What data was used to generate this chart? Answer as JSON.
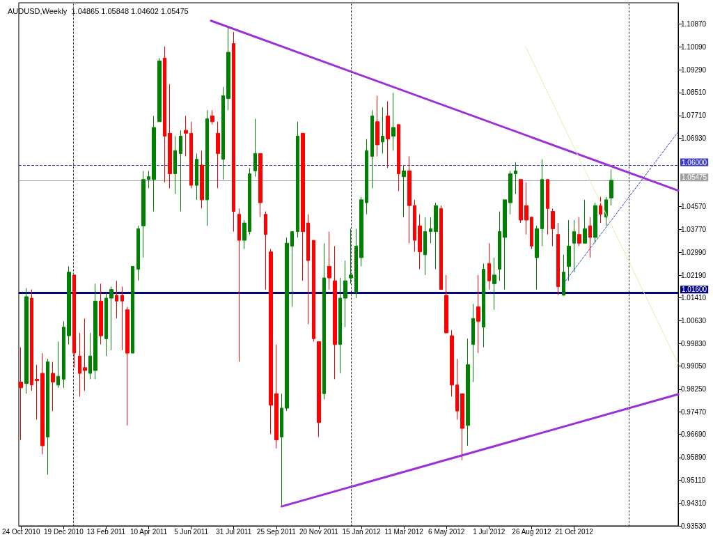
{
  "chart_data": {
    "type": "candlestick",
    "title": "AUDUSD,Weekly  1.04865 1.05848 1.04602 1.05475",
    "x": [
      "2010-10-24",
      "2010-10-31",
      "2010-11-07",
      "2010-11-14",
      "2010-11-21",
      "2010-11-28",
      "2010-12-05",
      "2010-12-12",
      "2010-12-19",
      "2010-12-26",
      "2011-01-02",
      "2011-01-09",
      "2011-01-16",
      "2011-01-23",
      "2011-01-30",
      "2011-02-06",
      "2011-02-13",
      "2011-02-20",
      "2011-02-27",
      "2011-03-06",
      "2011-03-13",
      "2011-03-20",
      "2011-03-27",
      "2011-04-03",
      "2011-04-10",
      "2011-04-17",
      "2011-04-24",
      "2011-05-01",
      "2011-05-08",
      "2011-05-15",
      "2011-05-22",
      "2011-05-29",
      "2011-06-05",
      "2011-06-12",
      "2011-06-19",
      "2011-06-26",
      "2011-07-03",
      "2011-07-10",
      "2011-07-17",
      "2011-07-24",
      "2011-07-31",
      "2011-08-07",
      "2011-08-14",
      "2011-08-21",
      "2011-08-28",
      "2011-09-04",
      "2011-09-11",
      "2011-09-18",
      "2011-09-25",
      "2011-10-02",
      "2011-10-09",
      "2011-10-16",
      "2011-10-23",
      "2011-10-30",
      "2011-11-06",
      "2011-11-13",
      "2011-11-20",
      "2011-11-27",
      "2011-12-04",
      "2011-12-11",
      "2011-12-18",
      "2011-12-25",
      "2012-01-01",
      "2012-01-08",
      "2012-01-15",
      "2012-01-22",
      "2012-01-29",
      "2012-02-05",
      "2012-02-12",
      "2012-02-19",
      "2012-02-26",
      "2012-03-04",
      "2012-03-11",
      "2012-03-18",
      "2012-03-25",
      "2012-04-01",
      "2012-04-08",
      "2012-04-15",
      "2012-04-22",
      "2012-04-29",
      "2012-05-06",
      "2012-05-13",
      "2012-05-20",
      "2012-05-27",
      "2012-06-03",
      "2012-06-10",
      "2012-06-17",
      "2012-06-24",
      "2012-07-01",
      "2012-07-08",
      "2012-07-15",
      "2012-07-22",
      "2012-07-29",
      "2012-08-05",
      "2012-08-12",
      "2012-08-19",
      "2012-08-26",
      "2012-09-02",
      "2012-09-09",
      "2012-09-16",
      "2012-09-23",
      "2012-09-30",
      "2012-10-07",
      "2012-10-14",
      "2012-10-21",
      "2012-10-28",
      "2012-11-04",
      "2012-11-11",
      "2012-11-18",
      "2012-11-25",
      "2012-12-02",
      "2012-12-09"
    ],
    "ohlc": [
      [
        0.985,
        0.997,
        0.965,
        0.983
      ],
      [
        0.9845,
        1.0175,
        0.981,
        1.0145
      ],
      [
        1.014,
        1.017,
        0.982,
        0.984
      ],
      [
        0.986,
        0.991,
        0.972,
        0.9855
      ],
      [
        0.988,
        0.995,
        0.96,
        0.963
      ],
      [
        0.966,
        0.993,
        0.953,
        0.992
      ],
      [
        0.988,
        0.992,
        0.975,
        0.985
      ],
      [
        0.984,
        0.999,
        0.983,
        0.987
      ],
      [
        0.986,
        1.006,
        0.983,
        1.004
      ],
      [
        1.001,
        1.025,
        0.998,
        1.023
      ],
      [
        1.022,
        1.022,
        0.99,
        0.995
      ],
      [
        0.994,
        1.002,
        0.98,
        0.988
      ],
      [
        0.99,
        1.007,
        0.982,
        0.989
      ],
      [
        0.988,
        1.002,
        0.986,
        0.994
      ],
      [
        0.989,
        1.019,
        0.986,
        1.013
      ],
      [
        1.013,
        1.019,
        0.998,
        1.001
      ],
      [
        1.0,
        1.016,
        0.994,
        1.014
      ],
      [
        1.014,
        1.018,
        0.996,
        1.017
      ],
      [
        1.015,
        1.02,
        1.007,
        1.013
      ],
      [
        1.015,
        1.018,
        0.996,
        1.013
      ],
      [
        1.01,
        1.011,
        0.97,
        0.995
      ],
      [
        0.995,
        1.025,
        0.995,
        1.025
      ],
      [
        1.024,
        1.039,
        1.02,
        1.038
      ],
      [
        1.039,
        1.058,
        1.028,
        1.055
      ],
      [
        1.055,
        1.058,
        1.052,
        1.056
      ],
      [
        1.055,
        1.077,
        1.044,
        1.073
      ],
      [
        1.075,
        1.097,
        1.075,
        1.096
      ],
      [
        1.097,
        1.101,
        1.054,
        1.07
      ],
      [
        1.071,
        1.088,
        1.052,
        1.057
      ],
      [
        1.057,
        1.07,
        1.05,
        1.065
      ],
      [
        1.064,
        1.072,
        1.044,
        1.07
      ],
      [
        1.072,
        1.077,
        1.063,
        1.071
      ],
      [
        1.071,
        1.075,
        1.052,
        1.053
      ],
      [
        1.053,
        1.064,
        1.048,
        1.062
      ],
      [
        1.06,
        1.065,
        1.045,
        1.048
      ],
      [
        1.048,
        1.079,
        1.039,
        1.076
      ],
      [
        1.077,
        1.079,
        1.074,
        1.075
      ],
      [
        1.071,
        1.075,
        1.052,
        1.064
      ],
      [
        1.062,
        1.087,
        1.055,
        1.084
      ],
      [
        1.083,
        1.108,
        1.079,
        1.099
      ],
      [
        1.102,
        1.106,
        1.037,
        1.044
      ],
      [
        1.043,
        1.045,
        0.992,
        1.034
      ],
      [
        1.034,
        1.041,
        1.031,
        1.04
      ],
      [
        1.037,
        1.059,
        1.036,
        1.057
      ],
      [
        1.058,
        1.076,
        1.056,
        1.064
      ],
      [
        1.064,
        1.064,
        1.042,
        1.047
      ],
      [
        1.043,
        1.044,
        1.017,
        1.036
      ],
      [
        1.03,
        1.031,
        0.967,
        0.977
      ],
      [
        0.981,
        0.998,
        0.962,
        0.965
      ],
      [
        0.966,
        0.981,
        0.942,
        0.976
      ],
      [
        0.976,
        1.035,
        0.975,
        1.033
      ],
      [
        1.032,
        1.037,
        1.011,
        1.037
      ],
      [
        1.037,
        1.075,
        1.035,
        1.07
      ],
      [
        1.071,
        1.071,
        1.02,
        1.037
      ],
      [
        1.04,
        1.043,
        1.005,
        1.027
      ],
      [
        1.034,
        1.034,
        0.999,
        1.0
      ],
      [
        0.999,
        0.999,
        0.966,
        0.971
      ],
      [
        0.981,
        1.033,
        0.979,
        1.021
      ],
      [
        1.025,
        1.037,
        1.017,
        1.021
      ],
      [
        1.02,
        1.032,
        0.986,
        0.998
      ],
      [
        0.998,
        1.021,
        0.988,
        1.014
      ],
      [
        1.014,
        1.027,
        1.004,
        1.02
      ],
      [
        1.021,
        1.038,
        1.019,
        1.022
      ],
      [
        1.016,
        1.038,
        1.014,
        1.032
      ],
      [
        1.028,
        1.049,
        1.025,
        1.048
      ],
      [
        1.047,
        1.069,
        1.043,
        1.065
      ],
      [
        1.063,
        1.079,
        1.052,
        1.077
      ],
      [
        1.075,
        1.084,
        1.063,
        1.067
      ],
      [
        1.068,
        1.08,
        1.064,
        1.07
      ],
      [
        1.077,
        1.082,
        1.059,
        1.069
      ],
      [
        1.07,
        1.085,
        1.065,
        1.073
      ],
      [
        1.074,
        1.074,
        1.051,
        1.057
      ],
      [
        1.056,
        1.06,
        1.042,
        1.058
      ],
      [
        1.058,
        1.063,
        1.033,
        1.046
      ],
      [
        1.046,
        1.048,
        1.03,
        1.034
      ],
      [
        1.039,
        1.043,
        1.024,
        1.03
      ],
      [
        1.029,
        1.042,
        1.022,
        1.037
      ],
      [
        1.037,
        1.042,
        1.033,
        1.038
      ],
      [
        1.037,
        1.047,
        1.024,
        1.046
      ],
      [
        1.045,
        1.046,
        1.017,
        1.017
      ],
      [
        1.015,
        1.022,
        1.002,
        1.002
      ],
      [
        1.001,
        1.003,
        0.98,
        0.984
      ],
      [
        0.984,
        0.993,
        0.972,
        0.975
      ],
      [
        0.981,
        0.981,
        0.958,
        0.969
      ],
      [
        0.97,
        1.0,
        0.963,
        0.991
      ],
      [
        0.998,
        1.012,
        0.985,
        1.007
      ],
      [
        1.011,
        1.022,
        0.995,
        1.006
      ],
      [
        1.004,
        1.026,
        0.997,
        1.024
      ],
      [
        1.026,
        1.033,
        1.017,
        1.02
      ],
      [
        1.019,
        1.028,
        1.01,
        1.022
      ],
      [
        1.024,
        1.044,
        1.02,
        1.037
      ],
      [
        1.035,
        1.048,
        1.017,
        1.048
      ],
      [
        1.047,
        1.058,
        1.043,
        1.057
      ],
      [
        1.057,
        1.061,
        1.05,
        1.058
      ],
      [
        1.055,
        1.055,
        1.04,
        1.041
      ],
      [
        1.046,
        1.054,
        1.036,
        1.041
      ],
      [
        1.042,
        1.042,
        1.031,
        1.032
      ],
      [
        1.028,
        1.039,
        1.017,
        1.038
      ],
      [
        1.038,
        1.062,
        1.032,
        1.055
      ],
      [
        1.055,
        1.055,
        1.036,
        1.045
      ],
      [
        1.044,
        1.045,
        1.032,
        1.038
      ],
      [
        1.036,
        1.04,
        1.015,
        1.018
      ],
      [
        1.015,
        1.029,
        1.015,
        1.023
      ],
      [
        1.025,
        1.041,
        1.02,
        1.032
      ],
      [
        1.033,
        1.041,
        1.023,
        1.037
      ],
      [
        1.036,
        1.042,
        1.032,
        1.033
      ],
      [
        1.033,
        1.048,
        1.033,
        1.038
      ],
      [
        1.039,
        1.042,
        1.028,
        1.035
      ],
      [
        1.035,
        1.047,
        1.033,
        1.046
      ],
      [
        1.046,
        1.049,
        1.04,
        1.043
      ],
      [
        1.042,
        1.049,
        1.039,
        1.048
      ],
      [
        1.04865,
        1.05848,
        1.04602,
        1.05475
      ]
    ],
    "xlim": [
      "2010-10-21",
      "2013-03-07"
    ],
    "xticks": [
      {
        "value": "2010-10-24",
        "label": "24 Oct 2010"
      },
      {
        "value": "2010-12-19",
        "label": "19 Dec 2010"
      },
      {
        "value": "2011-02-13",
        "label": "13 Feb 2011"
      },
      {
        "value": "2011-04-10",
        "label": "10 Apr 2011"
      },
      {
        "value": "2011-06-05",
        "label": "5 Jun 2011"
      },
      {
        "value": "2011-07-31",
        "label": "31 Jul 2011"
      },
      {
        "value": "2011-09-25",
        "label": "25 Sep 2011"
      },
      {
        "value": "2011-11-20",
        "label": "20 Nov 2011"
      },
      {
        "value": "2012-01-15",
        "label": "15 Jan 2012"
      },
      {
        "value": "2012-03-11",
        "label": "11 Mar 2012"
      },
      {
        "value": "2012-05-06",
        "label": "6 May 2012"
      },
      {
        "value": "2012-07-01",
        "label": "1 Jul 2012"
      },
      {
        "value": "2012-08-26",
        "label": "26 Aug 2012"
      },
      {
        "value": "2012-10-21",
        "label": "21 Oct 2012"
      }
    ],
    "ylim": [
      0.9353,
      1.1161
    ],
    "yticks": [
      {
        "value": 1.1087,
        "label": "1.10870"
      },
      {
        "value": 1.1009,
        "label": "1.10090"
      },
      {
        "value": 1.0929,
        "label": "1.09290"
      },
      {
        "value": 1.0851,
        "label": "1.08510"
      },
      {
        "value": 1.0771,
        "label": "1.07710"
      },
      {
        "value": 1.0693,
        "label": "1.06930"
      },
      {
        "value": 1.0457,
        "label": "1.04570"
      },
      {
        "value": 1.0377,
        "label": "1.03770"
      },
      {
        "value": 1.0299,
        "label": "1.02990"
      },
      {
        "value": 1.0219,
        "label": "1.02190"
      },
      {
        "value": 1.0141,
        "label": "1.01410"
      },
      {
        "value": 1.0063,
        "label": "1.00630"
      },
      {
        "value": 0.9983,
        "label": "0.99830"
      },
      {
        "value": 0.9905,
        "label": "0.99050"
      },
      {
        "value": 0.9825,
        "label": "0.98250"
      },
      {
        "value": 0.9747,
        "label": "0.97470"
      },
      {
        "value": 0.9669,
        "label": "0.96690"
      },
      {
        "value": 0.9589,
        "label": "0.95890"
      },
      {
        "value": 0.9511,
        "label": "0.95110"
      },
      {
        "value": 0.9431,
        "label": "0.94310"
      },
      {
        "value": 0.9353,
        "label": "0.93530"
      }
    ],
    "ref_lines": [
      {
        "axis": "y",
        "value": 1.06,
        "label": "1.06000",
        "color": "#3c3cc8",
        "line_style": "dashed"
      },
      {
        "axis": "y",
        "value": 1.05475,
        "label": "1.05475",
        "color": "#a0a0a0",
        "line_style": "solid"
      },
      {
        "axis": "y",
        "value": 1.016,
        "label": "1.01600",
        "color": "#000080",
        "line_style": "solid"
      },
      {
        "axis": "x",
        "value": "2011-01-01",
        "color": "#000000",
        "line_style": "dotted"
      },
      {
        "axis": "x",
        "value": "2012-01-01",
        "color": "#000000",
        "line_style": "dotted"
      },
      {
        "axis": "x",
        "value": "2013-01-01",
        "color": "#000000",
        "line_style": "dotted"
      }
    ],
    "series": [
      {
        "type": "line",
        "color": "#9b30d9",
        "x": [
          "2011-07-01",
          "2013-03-07"
        ],
        "values": [
          1.1099,
          1.0512
        ]
      },
      {
        "type": "line",
        "color": "#9b30d9",
        "x": [
          "2011-10-02",
          "2013-03-07"
        ],
        "values": [
          0.942,
          0.9808
        ]
      },
      {
        "type": "line",
        "color": "#3c3cc8",
        "line_style": "dashed",
        "x": [
          "2012-10-07",
          "2013-03-07"
        ],
        "values": [
          1.019,
          1.0715
        ]
      },
      {
        "type": "line",
        "color": "#f3e6a8",
        "line_style": "solid",
        "x": [
          "2012-08-18",
          "2013-03-07"
        ],
        "values": [
          1.101,
          0.9913
        ]
      }
    ]
  }
}
